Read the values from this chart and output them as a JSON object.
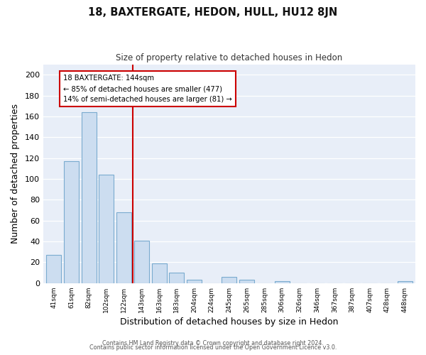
{
  "title": "18, BAXTERGATE, HEDON, HULL, HU12 8JN",
  "subtitle": "Size of property relative to detached houses in Hedon",
  "xlabel": "Distribution of detached houses by size in Hedon",
  "ylabel": "Number of detached properties",
  "bar_labels": [
    "41sqm",
    "61sqm",
    "82sqm",
    "102sqm",
    "122sqm",
    "143sqm",
    "163sqm",
    "183sqm",
    "204sqm",
    "224sqm",
    "245sqm",
    "265sqm",
    "285sqm",
    "306sqm",
    "326sqm",
    "346sqm",
    "367sqm",
    "387sqm",
    "407sqm",
    "428sqm",
    "448sqm"
  ],
  "bar_values": [
    27,
    117,
    164,
    104,
    68,
    41,
    19,
    10,
    3,
    0,
    6,
    3,
    0,
    2,
    0,
    0,
    0,
    0,
    0,
    0,
    2
  ],
  "bar_color": "#ccddf0",
  "bar_edge_color": "#7aabcf",
  "ref_line_color": "#cc0000",
  "annotation_title": "18 BAXTERGATE: 144sqm",
  "annotation_line1": "← 85% of detached houses are smaller (477)",
  "annotation_line2": "14% of semi-detached houses are larger (81) →",
  "annotation_box_color": "#ffffff",
  "annotation_box_edge_color": "#cc0000",
  "ylim": [
    0,
    210
  ],
  "yticks": [
    0,
    20,
    40,
    60,
    80,
    100,
    120,
    140,
    160,
    180,
    200
  ],
  "bg_color": "#ffffff",
  "plot_bg_color": "#e8eef8",
  "grid_color": "#ffffff",
  "footer_line1": "Contains HM Land Registry data © Crown copyright and database right 2024.",
  "footer_line2": "Contains public sector information licensed under the Open Government Licence v3.0."
}
